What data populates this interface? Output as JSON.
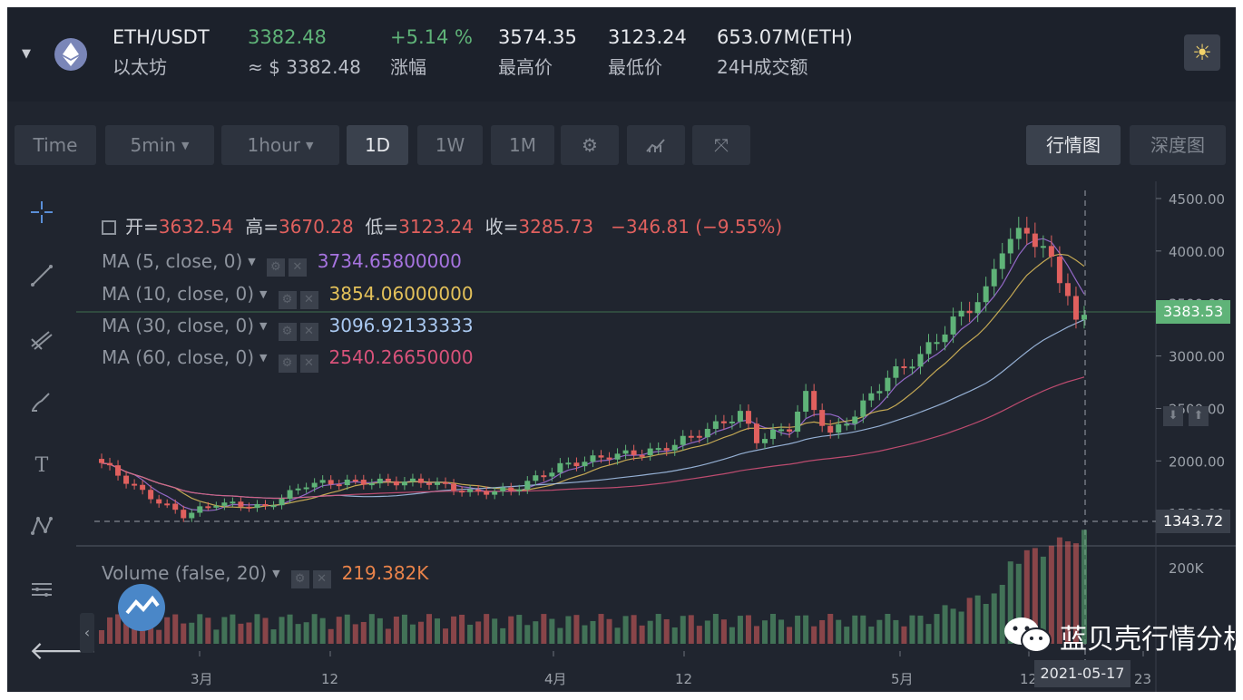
{
  "header": {
    "pair": "ETH/USDT",
    "coin_name": "以太坊",
    "last_price": "3382.48",
    "usd_price": "≈ $ 3382.48",
    "change_pct": "+5.14 %",
    "change_label": "涨幅",
    "high": "3574.35",
    "high_label": "最高价",
    "low": "3123.24",
    "low_label": "最低价",
    "volume_24h": "653.07M(ETH)",
    "volume_label": "24H成交额"
  },
  "toolbar": {
    "time": "Time",
    "min": "5min",
    "hour": "1hour",
    "d1": "1D",
    "w1": "1W",
    "m1": "1M",
    "view_kline": "行情图",
    "view_depth": "深度图"
  },
  "legend": {
    "open_label": "开=",
    "open": "3632.54",
    "high_label": "高=",
    "high": "3670.28",
    "low_label": "低=",
    "low": "3123.24",
    "close_label": "收=",
    "close": "3285.73",
    "change": "−346.81 (−9.55%)"
  },
  "indicators": [
    {
      "label": "MA (5, close, 0)",
      "value": "3734.65800000",
      "color": "#a774e0"
    },
    {
      "label": "MA (10, close, 0)",
      "value": "3854.06000000",
      "color": "#e3c15a"
    },
    {
      "label": "MA (30, close, 0)",
      "value": "3096.92133333",
      "color": "#a9c8f0"
    },
    {
      "label": "MA (60, close, 0)",
      "value": "2540.26650000",
      "color": "#d8527a"
    }
  ],
  "volume_indicator": {
    "label": "Volume (false, 20)",
    "value": "219.382K",
    "color": "#e9834a"
  },
  "price_axis": [
    "4500.00",
    "4000.00",
    "3500.00",
    "3000.00",
    "2500.00",
    "2000.00",
    "1500.00"
  ],
  "volume_axis": [
    "200K"
  ],
  "time_axis": [
    "3月",
    "12",
    "4月",
    "12",
    "5月",
    "12",
    "23"
  ],
  "current_price_tag": "3383.53",
  "crosshair_price_tag": "1343.72",
  "crosshair_date": "2021-05-17",
  "watermark_text": "蓝贝壳行情分析",
  "colors": {
    "up": "#5fb378",
    "down": "#e0605e",
    "background": "#20252f"
  }
}
